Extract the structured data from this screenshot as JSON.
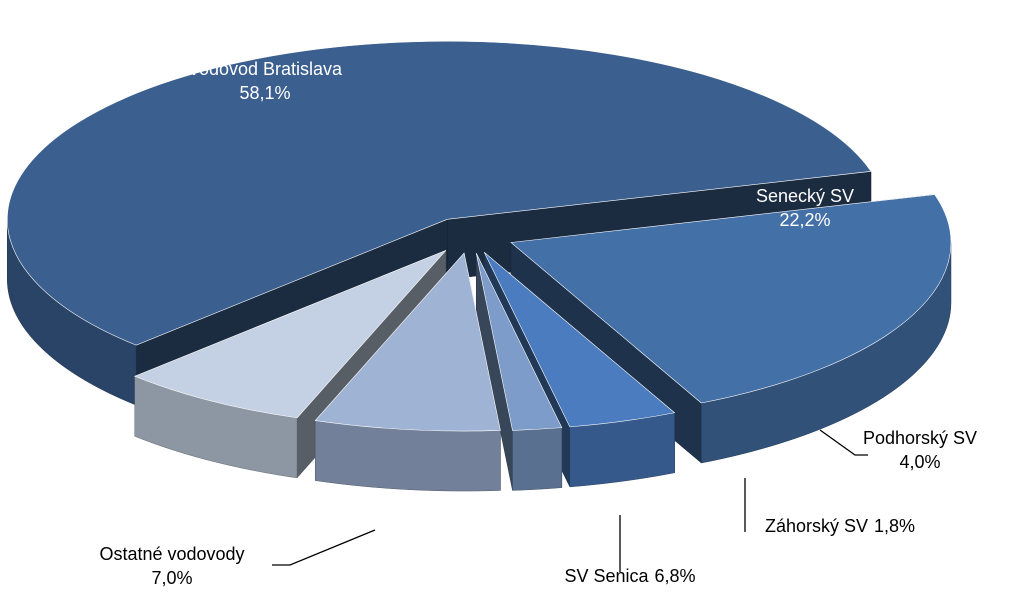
{
  "chart_data": {
    "type": "pie",
    "categories": [
      "Vodovod Bratislava",
      "Senecký SV",
      "Podhorský SV",
      "Záhorský SV",
      "SV Senica",
      "Ostatné vodovody"
    ],
    "values": [
      58.1,
      22.2,
      4.0,
      1.8,
      6.8,
      7.0
    ],
    "value_labels": [
      "58,1%",
      "22,2%",
      "4,0%",
      "1,8%",
      "6,8%",
      "7,0%"
    ],
    "colors": [
      "#3b5f8f",
      "#4470a8",
      "#4a7cbf",
      "#7d9cc9",
      "#9fb3d4",
      "#c4d0e3"
    ]
  }
}
